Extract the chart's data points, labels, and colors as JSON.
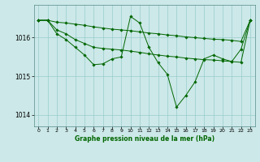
{
  "title": "Graphe pression niveau de la mer (hPa)",
  "background_color": "#cce8e8",
  "grid_color": "#99cccc",
  "line_color": "#006600",
  "marker_color": "#006600",
  "ylim": [
    1013.7,
    1016.85
  ],
  "xlim": [
    -0.5,
    23.5
  ],
  "yticks": [
    1014,
    1015,
    1016
  ],
  "xticks": [
    0,
    1,
    2,
    3,
    4,
    5,
    6,
    7,
    8,
    9,
    10,
    11,
    12,
    13,
    14,
    15,
    16,
    17,
    18,
    19,
    20,
    21,
    22,
    23
  ],
  "series": [
    {
      "x": [
        0,
        1,
        2,
        3,
        4,
        5,
        6,
        7,
        8,
        9,
        10,
        11,
        12,
        13,
        14,
        15,
        16,
        17,
        18,
        19,
        20,
        21,
        22,
        23
      ],
      "y": [
        1016.45,
        1016.45,
        1016.4,
        1016.38,
        1016.35,
        1016.32,
        1016.28,
        1016.25,
        1016.22,
        1016.2,
        1016.18,
        1016.15,
        1016.12,
        1016.1,
        1016.07,
        1016.05,
        1016.02,
        1016.0,
        1015.98,
        1015.96,
        1015.95,
        1015.93,
        1015.9,
        1016.45
      ]
    },
    {
      "x": [
        0,
        1,
        2,
        3,
        4,
        5,
        6,
        7,
        8,
        9,
        10,
        11,
        12,
        13,
        14,
        15,
        16,
        17,
        18,
        19,
        20,
        21,
        22,
        23
      ],
      "y": [
        1016.45,
        1016.45,
        1016.2,
        1016.1,
        1015.95,
        1015.85,
        1015.75,
        1015.72,
        1015.7,
        1015.68,
        1015.65,
        1015.62,
        1015.58,
        1015.55,
        1015.52,
        1015.5,
        1015.47,
        1015.45,
        1015.43,
        1015.42,
        1015.4,
        1015.38,
        1015.36,
        1016.45
      ]
    },
    {
      "x": [
        0,
        1,
        2,
        3,
        4,
        5,
        6,
        7,
        8,
        9,
        10,
        11,
        12,
        13,
        14,
        15,
        16,
        17,
        18,
        19,
        20,
        21,
        22,
        23
      ],
      "y": [
        1016.45,
        1016.45,
        1016.1,
        1015.95,
        1015.75,
        1015.55,
        1015.3,
        1015.32,
        1015.45,
        1015.5,
        1016.55,
        1016.38,
        1015.75,
        1015.35,
        1015.05,
        1014.2,
        1014.5,
        1014.85,
        1015.45,
        1015.55,
        1015.45,
        1015.38,
        1015.7,
        1016.45
      ]
    }
  ]
}
